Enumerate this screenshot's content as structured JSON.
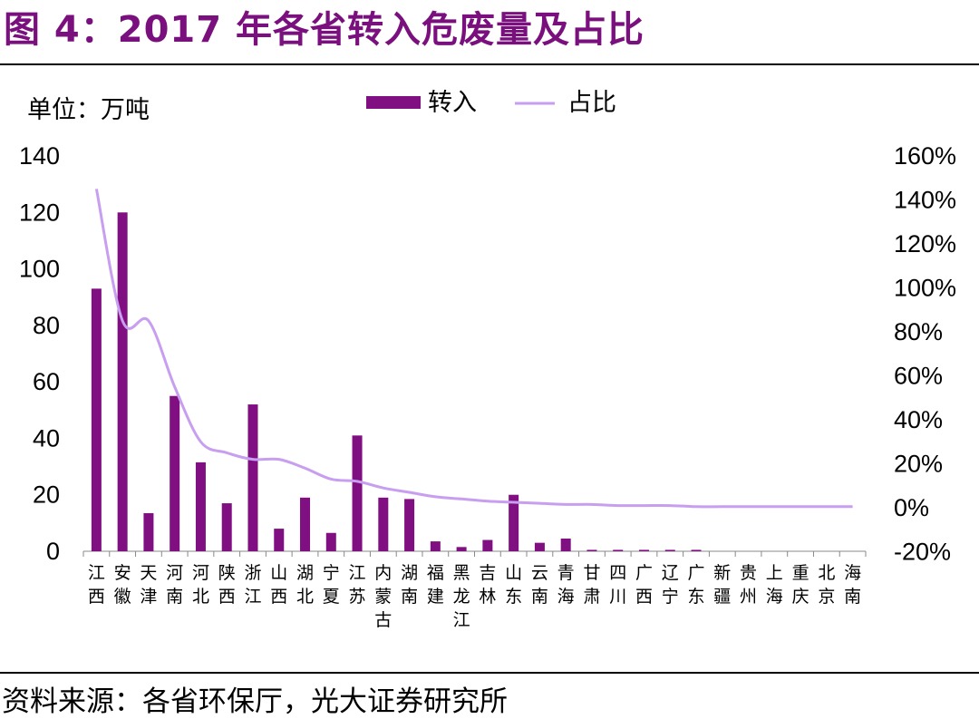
{
  "title": "图 4：2017 年各省转入危废量及占比",
  "source": "资料来源：各省环保厅，光大证券研究所",
  "colors": {
    "accent": "#7a0f7e",
    "bar": "#800f82",
    "line": "#c79ef0"
  },
  "chart_data": {
    "type": "bar+line",
    "unit_label": "单位：万吨",
    "categories": [
      "江西",
      "安徽",
      "天津",
      "河南",
      "河北",
      "陕西",
      "浙江",
      "山西",
      "湖北",
      "宁夏",
      "江苏",
      "内蒙古",
      "湖南",
      "福建",
      "黑龙江",
      "吉林",
      "山东",
      "云南",
      "青海",
      "甘肃",
      "四川",
      "广西",
      "辽宁",
      "广东",
      "新疆",
      "贵州",
      "上海",
      "重庆",
      "北京",
      "海南"
    ],
    "series": [
      {
        "name": "转入",
        "type": "bar",
        "axis": "left",
        "values": [
          93,
          120,
          13.5,
          55,
          31.5,
          17,
          52,
          8,
          19,
          6.5,
          41,
          19,
          18.5,
          3.5,
          1.5,
          4,
          20,
          3,
          4.5,
          0.5,
          0.5,
          0.5,
          0.5,
          0.5,
          0,
          0,
          0,
          0,
          0,
          0
        ]
      },
      {
        "name": "占比",
        "type": "line",
        "axis": "right",
        "values": [
          145,
          85,
          85,
          55,
          30,
          25,
          22,
          22,
          18,
          13,
          12,
          9,
          7,
          5,
          4,
          3,
          2.5,
          2,
          1.5,
          1.5,
          1,
          1,
          1,
          0.5,
          0.5,
          0.5,
          0.5,
          0.5,
          0.5,
          0.5
        ]
      }
    ],
    "left_axis": {
      "ticks": [
        "0",
        "20",
        "40",
        "60",
        "80",
        "100",
        "120",
        "140"
      ],
      "ylim": [
        0,
        140
      ]
    },
    "right_axis": {
      "ticks": [
        "-20%",
        "0%",
        "20%",
        "40%",
        "60%",
        "80%",
        "100%",
        "120%",
        "140%",
        "160%"
      ],
      "ylim": [
        -20,
        160
      ]
    },
    "legend": "top-center",
    "grid": false
  }
}
